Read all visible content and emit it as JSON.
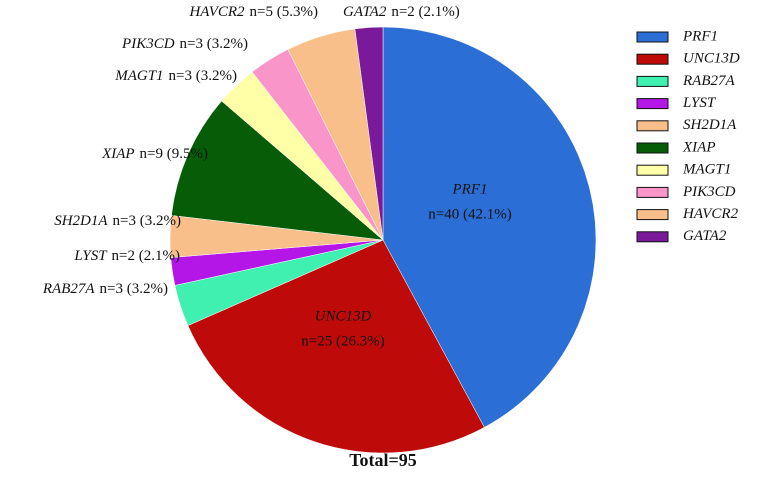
{
  "chart_data": {
    "type": "pie",
    "footer": "Total=95",
    "categories": [
      "PRF1",
      "UNC13D",
      "RAB27A",
      "LYST",
      "SH2D1A",
      "XIAP",
      "MAGT1",
      "PIK3CD",
      "HAVCR2",
      "GATA2"
    ],
    "values": [
      40,
      25,
      3,
      2,
      3,
      9,
      3,
      3,
      5,
      2
    ],
    "value_labels": [
      "n=40 (42.1%)",
      "n=25 (26.3%)",
      "n=3 (3.2%)",
      "n=2 (2.1%)",
      "n=3 (3.2%)",
      "n=9 (9.5%)",
      "n=3 (3.2%)",
      "n=3 (3.2%)",
      "n=5 (5.3%)",
      "n=2 (2.1%)"
    ],
    "colors": [
      "#2b6fd6",
      "#bf0a0a",
      "#3ff0b0",
      "#b516e8",
      "#f9bf8a",
      "#075c07",
      "#ffffa8",
      "#f995c8",
      "#f9bf8a",
      "#7a1a9a"
    ],
    "legend": "right"
  }
}
